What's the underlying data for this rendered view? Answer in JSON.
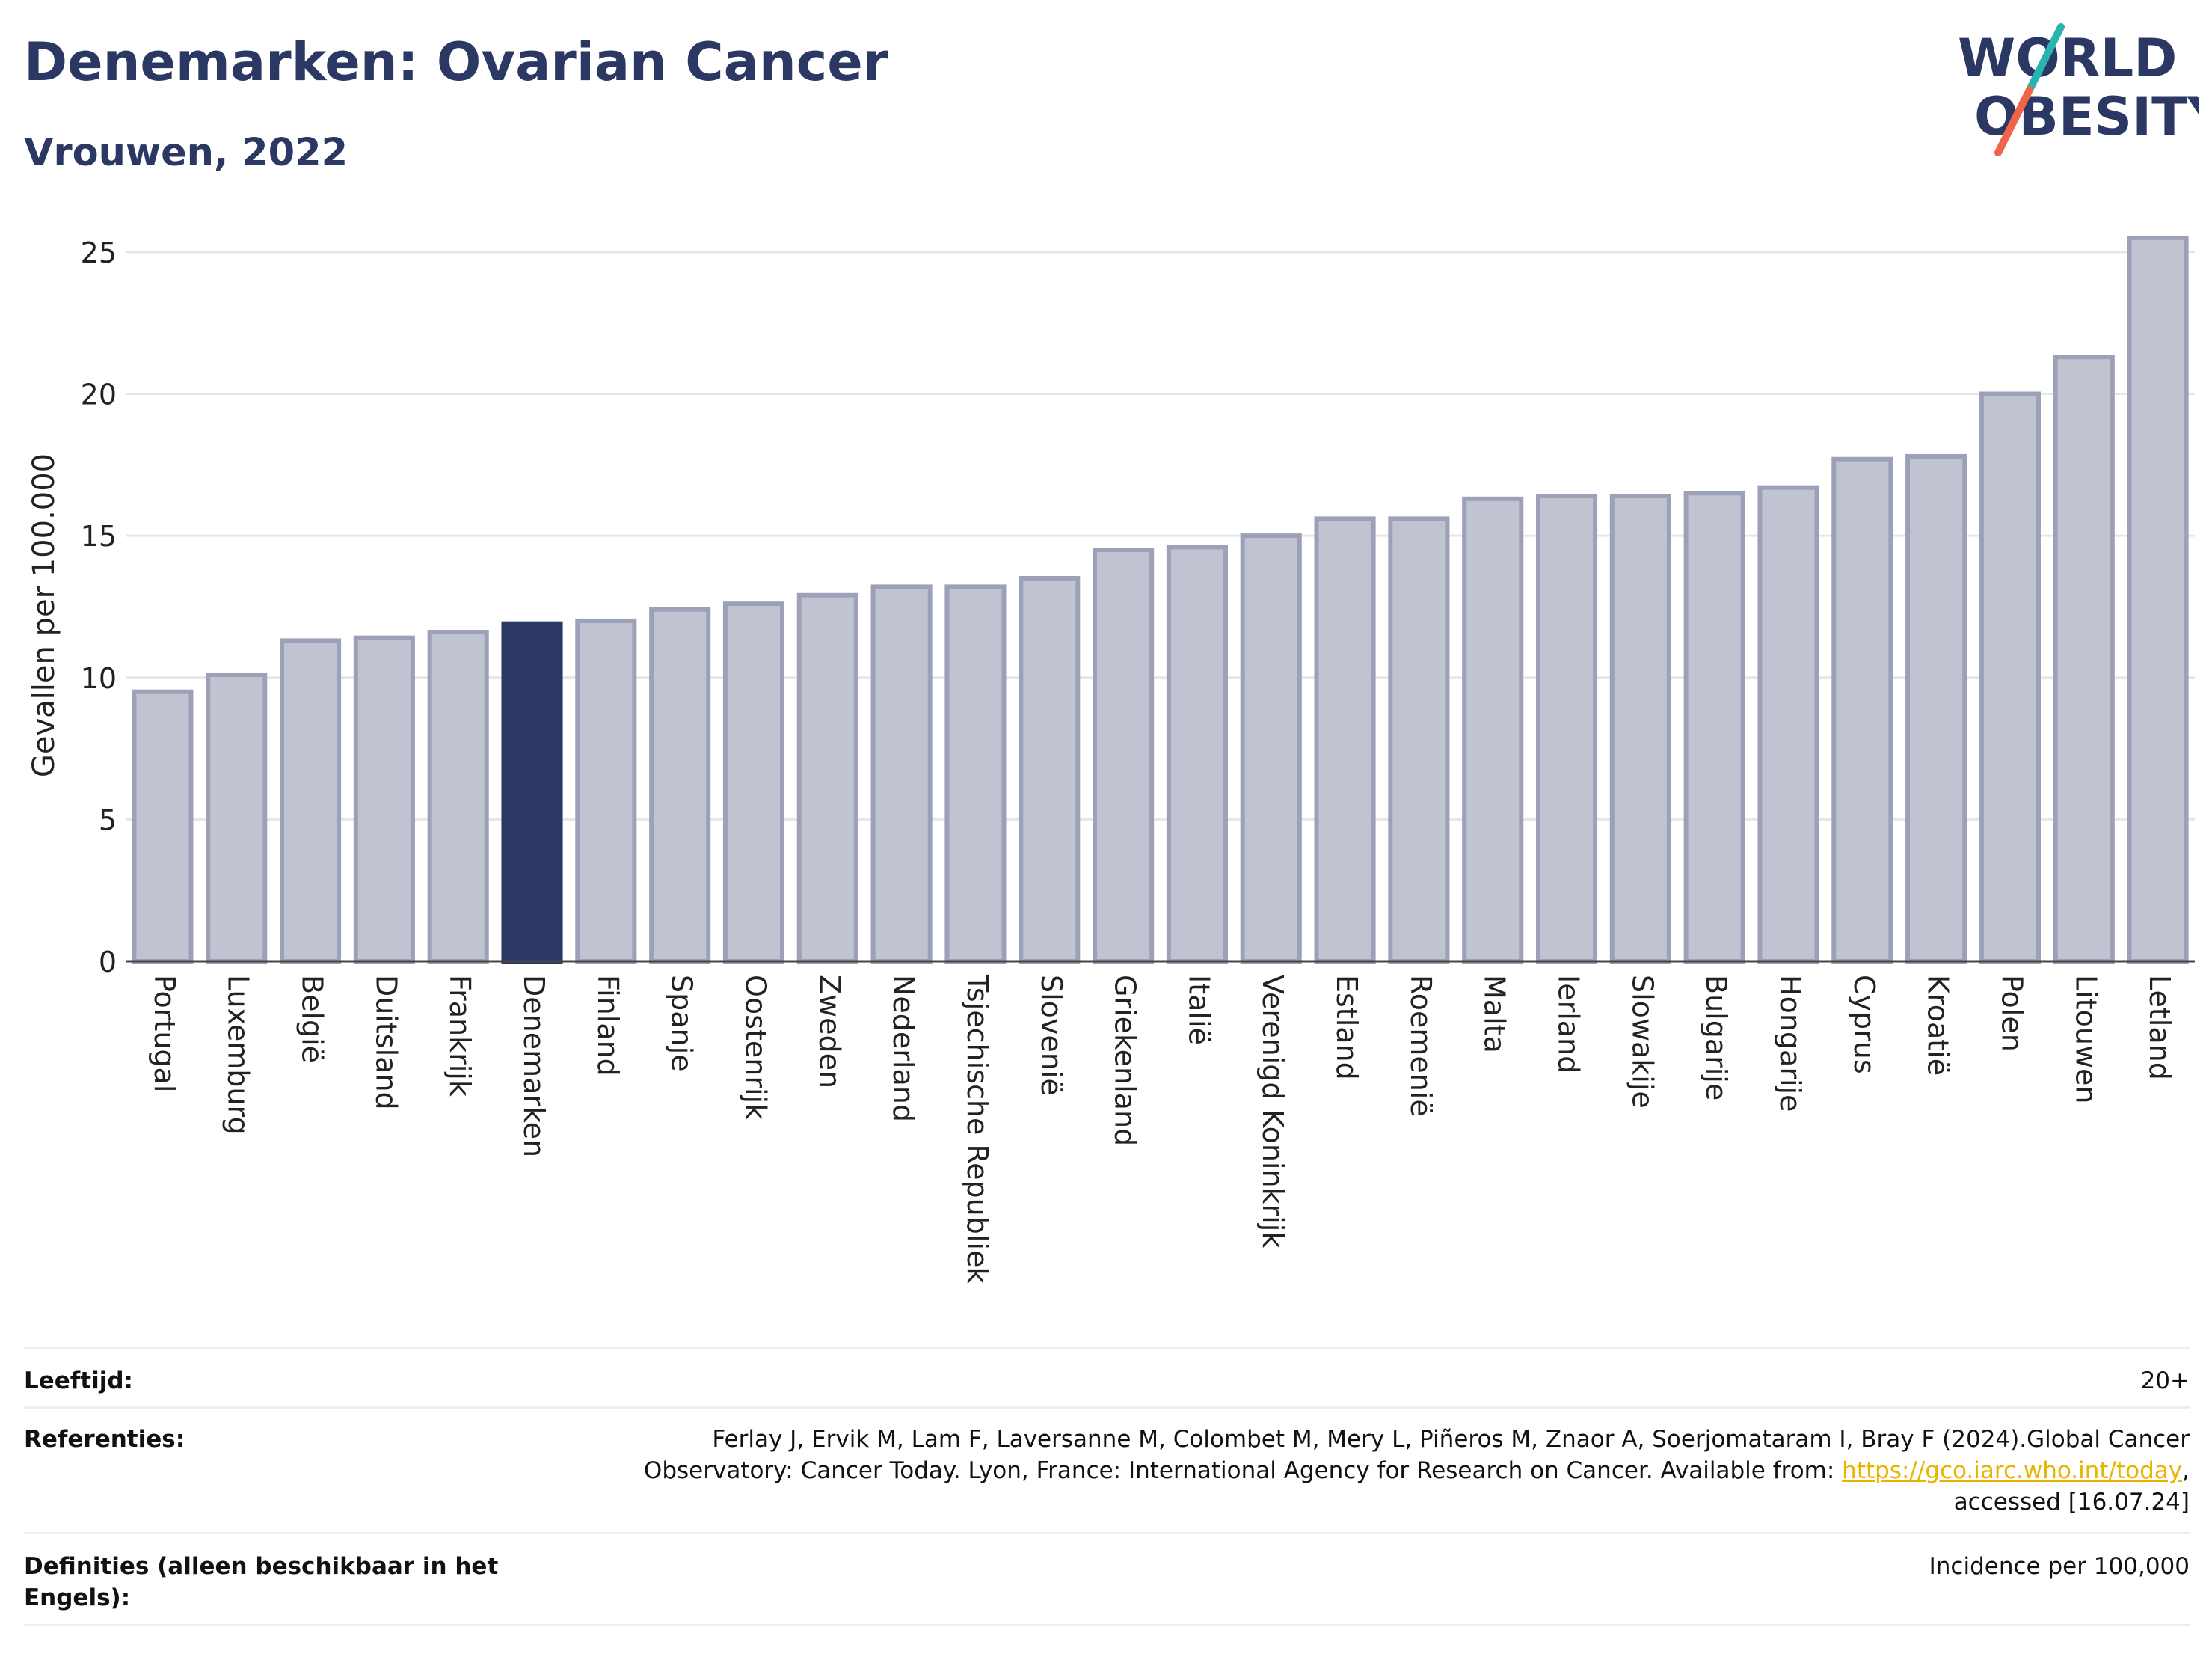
{
  "header": {
    "title": "Denemarken: Ovarian Cancer",
    "subtitle": "Vrouwen, 2022"
  },
  "logo": {
    "line1": "WORLD",
    "line2": "OBESITY",
    "text_color": "#2c3864",
    "slash_colors": [
      "#2bb3b1",
      "#f06449"
    ]
  },
  "chart_data": {
    "type": "bar",
    "ylabel": "Gevallen per 100.000",
    "ylim": [
      0,
      26.5
    ],
    "yticks": [
      0,
      5,
      10,
      15,
      20,
      25
    ],
    "grid": true,
    "highlight": "Denemarken",
    "colors": {
      "bar": "#c0c3d0",
      "bar_edge": "#9da1b8",
      "highlight": "#2c3864"
    },
    "categories": [
      "Portugal",
      "Luxemburg",
      "België",
      "Duitsland",
      "Frankrijk",
      "Denemarken",
      "Finland",
      "Spanje",
      "Oostenrijk",
      "Zweden",
      "Nederland",
      "Tsjechische Republiek",
      "Slovenië",
      "Griekenland",
      "Italië",
      "Verenigd Koninkrijk",
      "Estland",
      "Roemenië",
      "Malta",
      "Ierland",
      "Slowakije",
      "Bulgarije",
      "Hongarije",
      "Cyprus",
      "Kroatië",
      "Polen",
      "Litouwen",
      "Letland"
    ],
    "values": [
      9.5,
      10.1,
      11.3,
      11.4,
      11.6,
      11.9,
      12.0,
      12.4,
      12.6,
      12.9,
      13.2,
      13.2,
      13.5,
      14.5,
      14.6,
      15.0,
      15.6,
      15.6,
      16.3,
      16.4,
      16.4,
      16.5,
      16.7,
      17.7,
      17.8,
      20.0,
      21.3,
      25.5
    ]
  },
  "footer": {
    "age_label": "Leeftijd:",
    "age_value": "20+",
    "ref_label": "Referenties:",
    "ref_text_1": "Ferlay J, Ervik M, Lam F, Laversanne M, Colombet M, Mery L, Piñeros M, Znaor A, Soerjomataram I, Bray F (2024).Global Cancer Observatory: Cancer Today. Lyon, France: International Agency for Research on Cancer. Available from: ",
    "ref_link": "https://gco.iarc.who.int/today",
    "ref_text_2": ", accessed [16.07.24]",
    "def_label": "Definities (alleen beschikbaar in het Engels):",
    "def_value": "Incidence per 100,000"
  }
}
